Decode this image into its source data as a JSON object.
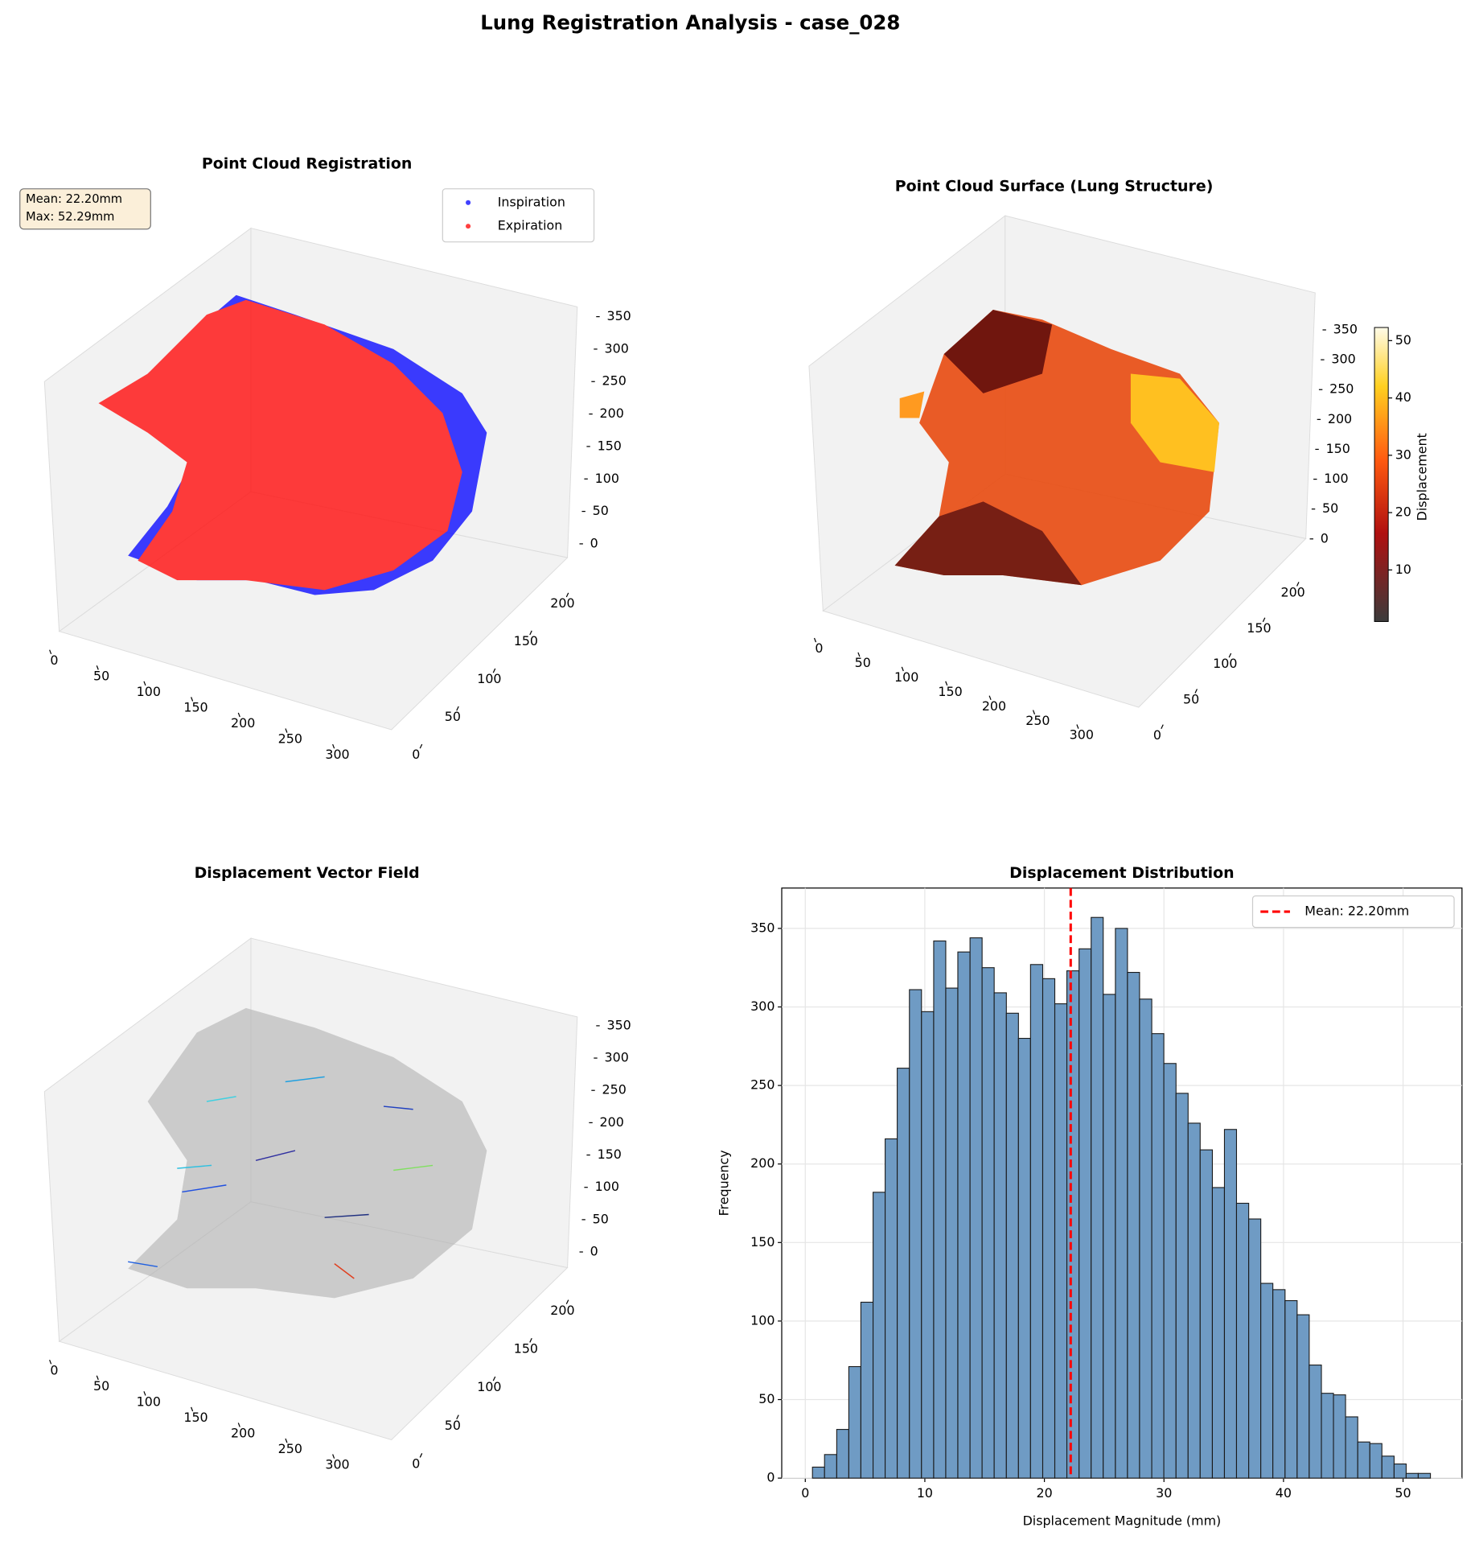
{
  "title": "Lung Registration Analysis - case_028",
  "chart_data": [
    {
      "type": "scatter3d",
      "title": "Point Cloud Registration",
      "annotation": [
        "Mean: 22.20mm",
        "Max: 52.29mm"
      ],
      "series": [
        {
          "name": "Inspiration",
          "color": "#0000ff"
        },
        {
          "name": "Expiration",
          "color": "#ff0000"
        }
      ],
      "legend": "upper right",
      "xlim": [
        -15,
        320
      ],
      "ylim": [
        -10,
        225
      ],
      "zlim": [
        -15,
        370
      ],
      "xticks": [
        0,
        50,
        100,
        150,
        200,
        250,
        300
      ],
      "yticks": [
        0,
        50,
        100,
        150,
        200
      ],
      "zticks": [
        0,
        50,
        100,
        150,
        200,
        250,
        300,
        350
      ]
    },
    {
      "type": "surface3d",
      "title": "Point Cloud Surface (Lung Structure)",
      "colorbar_label": "Displacement",
      "clim": [
        1,
        52.29
      ],
      "cticks": [
        10,
        20,
        30,
        40,
        50
      ],
      "xlim": [
        -15,
        320
      ],
      "ylim": [
        -10,
        225
      ],
      "zlim": [
        -15,
        370
      ],
      "xticks": [
        0,
        50,
        100,
        150,
        200,
        250,
        300
      ],
      "yticks": [
        0,
        50,
        100,
        150,
        200
      ],
      "zticks": [
        0,
        50,
        100,
        150,
        200,
        250,
        300,
        350
      ]
    },
    {
      "type": "quiver3d",
      "title": "Displacement Vector Field",
      "xlim": [
        -15,
        320
      ],
      "ylim": [
        -10,
        225
      ],
      "zlim": [
        -15,
        370
      ],
      "xticks": [
        0,
        50,
        100,
        150,
        200,
        250,
        300
      ],
      "yticks": [
        0,
        50,
        100,
        150,
        200
      ],
      "zticks": [
        0,
        50,
        100,
        150,
        200,
        250,
        300,
        350
      ]
    },
    {
      "type": "histogram",
      "title": "Displacement Distribution",
      "x_label": "Displacement Magnitude (mm)",
      "y_label": "Frequency",
      "color": "#6f9bc4",
      "bins": [
        0.6,
        1.61,
        2.63,
        3.64,
        4.65,
        5.67,
        6.68,
        7.69,
        8.71,
        9.72,
        10.74,
        11.75,
        12.76,
        13.78,
        14.79,
        15.8,
        16.82,
        17.83,
        18.84,
        19.86,
        20.87,
        21.88,
        22.9,
        23.91,
        24.92,
        25.94,
        26.95,
        27.96,
        28.98,
        29.99,
        31.01,
        32.02,
        33.03,
        34.05,
        35.06,
        36.07,
        37.09,
        38.1,
        39.11,
        40.13,
        41.14,
        42.15,
        43.17,
        44.18,
        45.19,
        46.21,
        47.22,
        48.23,
        49.25,
        50.26,
        51.27,
        52.29
      ],
      "counts": [
        7,
        15,
        31,
        71,
        112,
        182,
        216,
        261,
        311,
        297,
        342,
        312,
        335,
        344,
        325,
        309,
        296,
        280,
        327,
        318,
        302,
        323,
        337,
        357,
        308,
        350,
        322,
        305,
        283,
        264,
        245,
        226,
        209,
        185,
        222,
        175,
        165,
        124,
        120,
        113,
        104,
        72,
        54,
        53,
        39,
        23,
        22,
        14,
        9,
        3,
        3
      ],
      "mean_line": {
        "value": 22.2,
        "label": "Mean: 22.20mm",
        "color": "#ff0000"
      },
      "legend": "upper right",
      "grid": true,
      "xlim": [
        -1.97,
        54.93
      ],
      "ylim": [
        0,
        375.7
      ],
      "xticks": [
        0,
        10,
        20,
        30,
        40,
        50
      ],
      "yticks": [
        0,
        50,
        100,
        150,
        200,
        250,
        300,
        350
      ]
    }
  ]
}
